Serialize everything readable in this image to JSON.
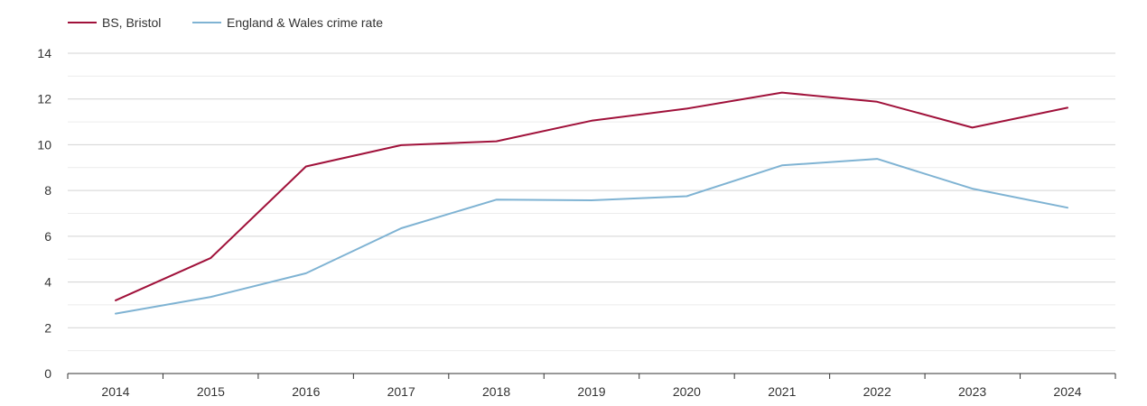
{
  "chart_data": {
    "type": "line",
    "title": "",
    "xlabel": "",
    "ylabel": "",
    "x": [
      "2014",
      "2015",
      "2016",
      "2017",
      "2018",
      "2019",
      "2020",
      "2021",
      "2022",
      "2023",
      "2024"
    ],
    "ylim": [
      0,
      14
    ],
    "yticks": [
      "0",
      "2",
      "4",
      "6",
      "8",
      "10",
      "12",
      "14"
    ],
    "grid": true,
    "legend_position": "top-left",
    "series": [
      {
        "name": "BS, Bristol",
        "color": "#a0113a",
        "values": [
          3.2,
          5.05,
          9.05,
          9.98,
          10.15,
          11.05,
          11.58,
          12.28,
          11.88,
          10.75,
          11.62
        ]
      },
      {
        "name": "England & Wales crime rate",
        "color": "#7fb3d3",
        "values": [
          2.62,
          3.35,
          4.38,
          6.35,
          7.6,
          7.57,
          7.75,
          9.1,
          9.38,
          8.08,
          7.25
        ]
      }
    ]
  }
}
